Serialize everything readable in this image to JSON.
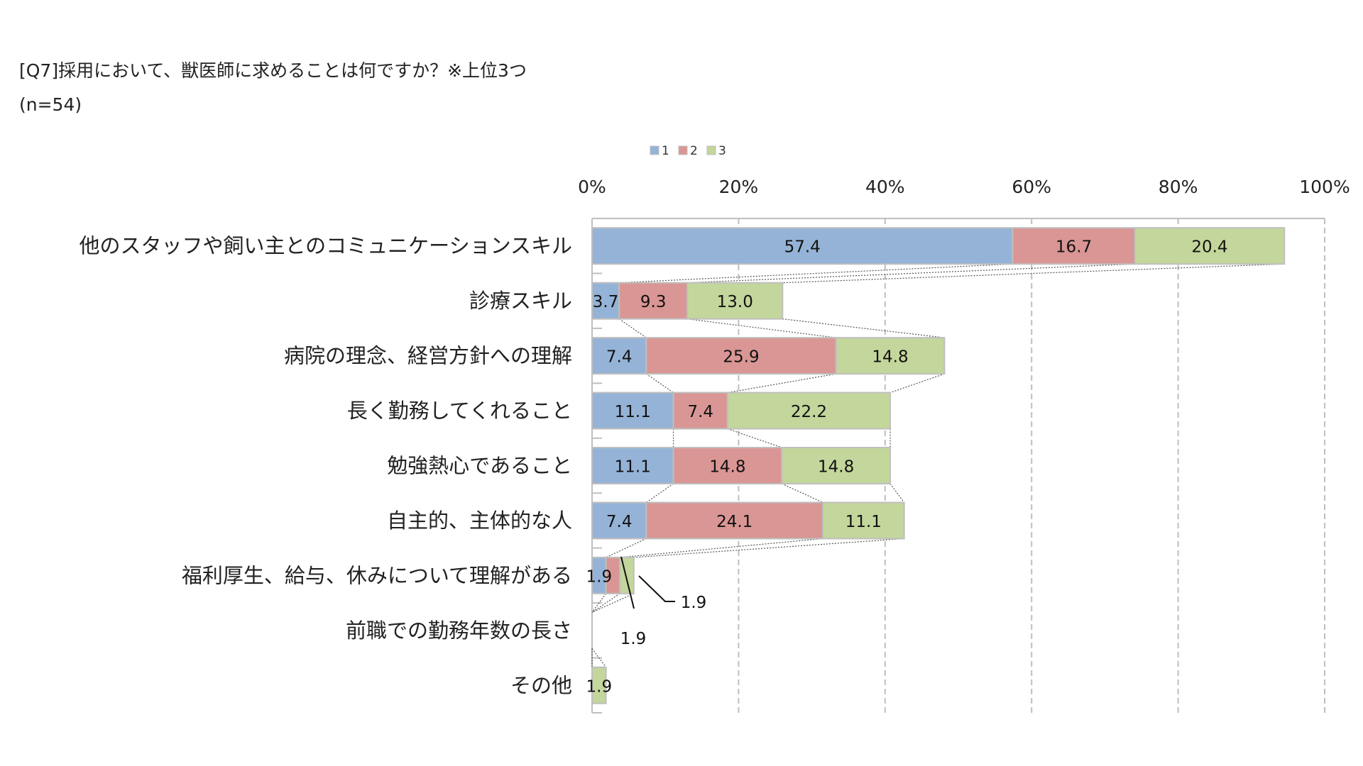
{
  "title": "[Q7]採用において、獣医師に求めることは何ですか？※上位3つ",
  "subtitle": "(n=54)",
  "colors": {
    "s1": "#95B3D7",
    "s2": "#D99694",
    "s3": "#C3D69B",
    "border": "#BFBFBF",
    "grid": "#BFBFBF"
  },
  "chart_data": {
    "type": "bar",
    "orientation": "horizontal-stacked",
    "title": "[Q7]採用において、獣医師に求めることは何ですか？※上位3つ",
    "subtitle": "(n=54)",
    "xlim": [
      0,
      100
    ],
    "xticks": [
      "0%",
      "20%",
      "40%",
      "60%",
      "80%",
      "100%"
    ],
    "x_axis_position": "top",
    "grid": true,
    "legend": {
      "position": "top-center",
      "entries": [
        "1",
        "2",
        "3"
      ]
    },
    "categories": [
      "他のスタッフや飼い主とのコミュニケーションスキル",
      "診療スキル",
      "病院の理念、経営方針への理解",
      "長く勤務してくれること",
      "勉強熱心であること",
      "自主的、主体的な人",
      "福利厚生、給与、休みについて理解がある",
      "前職での勤務年数の長さ",
      "その他"
    ],
    "series": [
      {
        "name": "1",
        "values": [
          57.4,
          3.7,
          7.4,
          11.1,
          11.1,
          7.4,
          1.9,
          0,
          0
        ],
        "labels": [
          "57.4",
          "3.7",
          "7.4",
          "11.1",
          "11.1",
          "7.4",
          "1.9",
          "",
          ""
        ]
      },
      {
        "name": "2",
        "values": [
          16.7,
          9.3,
          25.9,
          7.4,
          14.8,
          24.1,
          1.9,
          0,
          0
        ],
        "labels": [
          "16.7",
          "9.3",
          "25.9",
          "7.4",
          "14.8",
          "24.1",
          "1.9",
          "",
          ""
        ]
      },
      {
        "name": "3",
        "values": [
          20.4,
          13.0,
          14.8,
          22.2,
          14.8,
          11.1,
          1.9,
          0,
          1.9
        ],
        "labels": [
          "20.4",
          "13.0",
          "14.8",
          "22.2",
          "14.8",
          "11.1",
          "1.9",
          "",
          "1.9"
        ]
      }
    ]
  }
}
